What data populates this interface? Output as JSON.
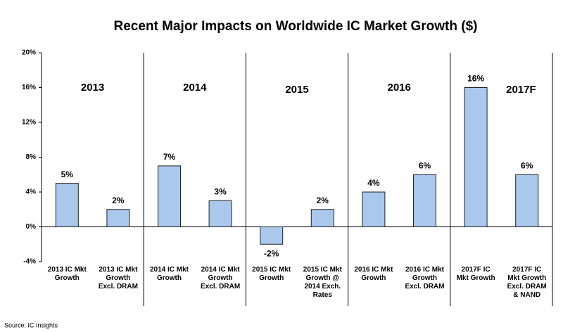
{
  "chart_data": {
    "type": "bar",
    "title": "Recent Major Impacts on Worldwide IC Market Growth ($)",
    "categories": [
      "2013 IC Mkt\nGrowth",
      "2013 IC Mkt\nGrowth\nExcl. DRAM",
      "2014 IC Mkt\nGrowth",
      "2014 IC Mkt\nGrowth\nExcl. DRAM",
      "2015 IC Mkt\nGrowth",
      "2015 IC Mkt\nGrowth @\n2014 Exch.\nRates",
      "2016 IC Mkt\nGrowth",
      "2016 IC Mkt\nGrowth\nExcl. DRAM",
      "2017F IC\nMkt Growth",
      "2017F IC\nMkt Growth\nExcl. DRAM\n& NAND"
    ],
    "values": [
      5,
      2,
      7,
      3,
      -2,
      2,
      4,
      6,
      16,
      6
    ],
    "value_labels": [
      "5%",
      "2%",
      "7%",
      "3%",
      "-2%",
      "2%",
      "4%",
      "6%",
      "16%",
      "6%"
    ],
    "groups": [
      "2013",
      "2014",
      "2015",
      "2016",
      "2017F"
    ],
    "color": "#a9c8ec",
    "ylim": [
      -4,
      20
    ],
    "yticks": [
      {
        "value": -4,
        "label": "-4%"
      },
      {
        "value": 0,
        "label": "0%"
      },
      {
        "value": 4,
        "label": "4%"
      },
      {
        "value": 8,
        "label": "8%"
      },
      {
        "value": 12,
        "label": "12%"
      },
      {
        "value": 16,
        "label": "16%"
      },
      {
        "value": 20,
        "label": "20%"
      }
    ],
    "source": "Source: IC Insights"
  }
}
